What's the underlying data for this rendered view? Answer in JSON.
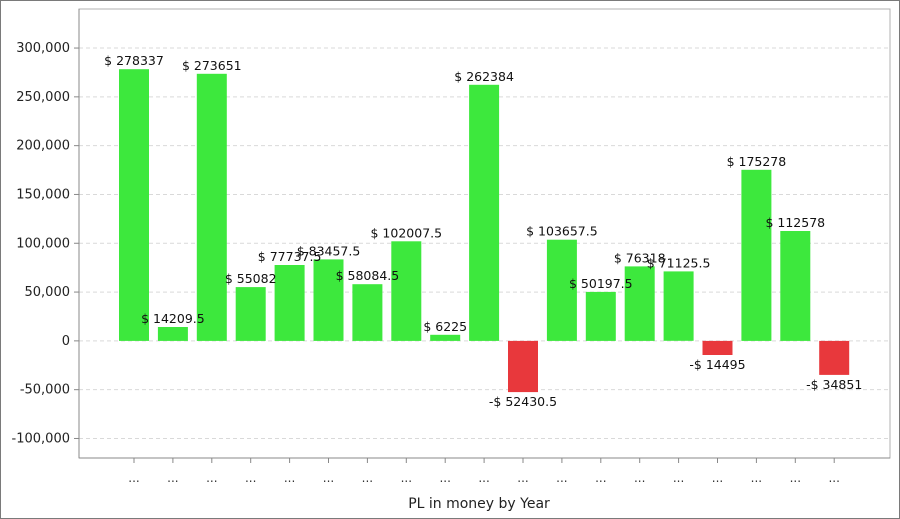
{
  "chart_data": {
    "type": "bar",
    "title": "",
    "xlabel": "PL in money by Year",
    "ylabel": "",
    "ylim": [
      -120000,
      340000
    ],
    "yticks": [
      -100000,
      -50000,
      0,
      50000,
      100000,
      150000,
      200000,
      250000,
      300000
    ],
    "ytick_labels": [
      "-100,000",
      "-50,000",
      "0",
      "50,000",
      "100,000",
      "150,000",
      "200,000",
      "250,000",
      "300,000"
    ],
    "grid": true,
    "legend": "none",
    "categories": [
      "...",
      "...",
      "...",
      "...",
      "...",
      "...",
      "...",
      "...",
      "...",
      "...",
      "...",
      "...",
      "...",
      "...",
      "...",
      "...",
      "...",
      "...",
      "..."
    ],
    "values": [
      278337,
      14209.5,
      273651,
      55082,
      77737.5,
      83457.5,
      58084.5,
      102007.5,
      6225,
      262384,
      -52430.5,
      103657.5,
      50197.5,
      76318,
      71125.5,
      -14495,
      175278,
      112578,
      -34851
    ],
    "data_labels": [
      "$ 278337",
      "$ 14209.5",
      "$ 273651",
      "$ 55082",
      "$ 77737.5",
      "$ 83457.5",
      "$ 58084.5",
      "$ 102007.5",
      "$ 6225",
      "$ 262384",
      "-$ 52430.5",
      "$ 103657.5",
      "$ 50197.5",
      "$ 76318",
      "$ 71125.5",
      "-$ 14495",
      "$ 175278",
      "$ 112578",
      "-$ 34851"
    ],
    "colors": {
      "positive": "#3de83d",
      "negative": "#e8383c",
      "grid": "#d9d9d9",
      "axis": "#888888"
    }
  }
}
